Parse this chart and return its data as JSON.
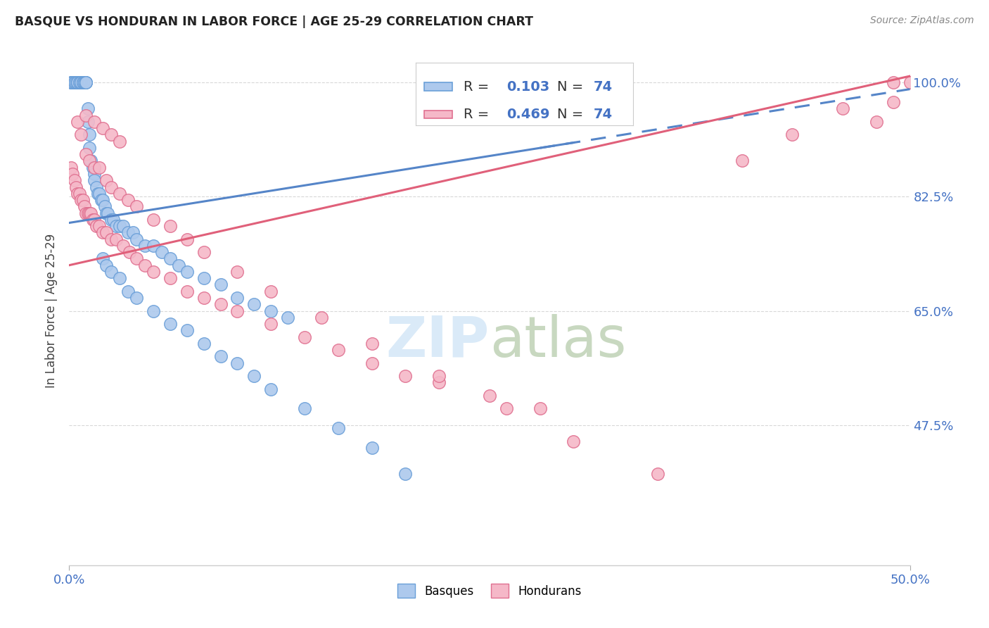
{
  "title": "BASQUE VS HONDURAN IN LABOR FORCE | AGE 25-29 CORRELATION CHART",
  "source": "Source: ZipAtlas.com",
  "ylabel": "In Labor Force | Age 25-29",
  "x_min": 0.0,
  "x_max": 0.5,
  "y_min": 0.26,
  "y_max": 1.04,
  "y_tick_vals": [
    0.475,
    0.65,
    0.825,
    1.0
  ],
  "y_tick_labels": [
    "47.5%",
    "65.0%",
    "82.5%",
    "100.0%"
  ],
  "x_tick_vals": [
    0.0,
    0.5
  ],
  "x_tick_labels": [
    "0.0%",
    "50.0%"
  ],
  "blue_color": "#adc9ed",
  "blue_edge": "#6a9fd8",
  "pink_color": "#f5b8c8",
  "pink_edge": "#e07090",
  "blue_line_color": "#5585c8",
  "pink_line_color": "#e0607a",
  "tick_label_color": "#4472c4",
  "grid_color": "#d8d8d8",
  "watermark_color": "#daeaf8",
  "blue_R": "0.103",
  "pink_R": "0.469",
  "N": "74",
  "blue_scatter_x": [
    0.001,
    0.001,
    0.002,
    0.002,
    0.003,
    0.003,
    0.004,
    0.005,
    0.005,
    0.006,
    0.006,
    0.007,
    0.007,
    0.008,
    0.008,
    0.009,
    0.009,
    0.01,
    0.01,
    0.01,
    0.011,
    0.011,
    0.012,
    0.012,
    0.013,
    0.014,
    0.015,
    0.015,
    0.016,
    0.017,
    0.018,
    0.019,
    0.02,
    0.021,
    0.022,
    0.023,
    0.025,
    0.026,
    0.028,
    0.03,
    0.032,
    0.035,
    0.038,
    0.04,
    0.045,
    0.05,
    0.055,
    0.06,
    0.065,
    0.07,
    0.08,
    0.09,
    0.1,
    0.11,
    0.12,
    0.13,
    0.02,
    0.022,
    0.025,
    0.03,
    0.035,
    0.04,
    0.05,
    0.06,
    0.07,
    0.08,
    0.09,
    0.1,
    0.11,
    0.12,
    0.14,
    0.16,
    0.18,
    0.2
  ],
  "blue_scatter_y": [
    1.0,
    1.0,
    1.0,
    1.0,
    1.0,
    1.0,
    1.0,
    1.0,
    1.0,
    1.0,
    1.0,
    1.0,
    1.0,
    1.0,
    1.0,
    1.0,
    1.0,
    1.0,
    1.0,
    1.0,
    0.96,
    0.94,
    0.92,
    0.9,
    0.88,
    0.87,
    0.86,
    0.85,
    0.84,
    0.83,
    0.83,
    0.82,
    0.82,
    0.81,
    0.8,
    0.8,
    0.79,
    0.79,
    0.78,
    0.78,
    0.78,
    0.77,
    0.77,
    0.76,
    0.75,
    0.75,
    0.74,
    0.73,
    0.72,
    0.71,
    0.7,
    0.69,
    0.67,
    0.66,
    0.65,
    0.64,
    0.73,
    0.72,
    0.71,
    0.7,
    0.68,
    0.67,
    0.65,
    0.63,
    0.62,
    0.6,
    0.58,
    0.57,
    0.55,
    0.53,
    0.5,
    0.47,
    0.44,
    0.4
  ],
  "pink_scatter_x": [
    0.001,
    0.002,
    0.003,
    0.004,
    0.005,
    0.006,
    0.007,
    0.008,
    0.009,
    0.01,
    0.011,
    0.012,
    0.013,
    0.014,
    0.015,
    0.016,
    0.018,
    0.02,
    0.022,
    0.025,
    0.028,
    0.032,
    0.036,
    0.04,
    0.045,
    0.05,
    0.06,
    0.07,
    0.08,
    0.09,
    0.1,
    0.12,
    0.14,
    0.16,
    0.18,
    0.2,
    0.22,
    0.25,
    0.28,
    0.005,
    0.007,
    0.01,
    0.012,
    0.015,
    0.018,
    0.022,
    0.025,
    0.03,
    0.035,
    0.04,
    0.05,
    0.06,
    0.07,
    0.08,
    0.1,
    0.12,
    0.15,
    0.18,
    0.22,
    0.26,
    0.3,
    0.35,
    0.4,
    0.43,
    0.46,
    0.49,
    0.5,
    0.49,
    0.48,
    0.01,
    0.015,
    0.02,
    0.025,
    0.03
  ],
  "pink_scatter_y": [
    0.87,
    0.86,
    0.85,
    0.84,
    0.83,
    0.83,
    0.82,
    0.82,
    0.81,
    0.8,
    0.8,
    0.8,
    0.8,
    0.79,
    0.79,
    0.78,
    0.78,
    0.77,
    0.77,
    0.76,
    0.76,
    0.75,
    0.74,
    0.73,
    0.72,
    0.71,
    0.7,
    0.68,
    0.67,
    0.66,
    0.65,
    0.63,
    0.61,
    0.59,
    0.57,
    0.55,
    0.54,
    0.52,
    0.5,
    0.94,
    0.92,
    0.89,
    0.88,
    0.87,
    0.87,
    0.85,
    0.84,
    0.83,
    0.82,
    0.81,
    0.79,
    0.78,
    0.76,
    0.74,
    0.71,
    0.68,
    0.64,
    0.6,
    0.55,
    0.5,
    0.45,
    0.4,
    0.88,
    0.92,
    0.96,
    1.0,
    1.0,
    0.97,
    0.94,
    0.95,
    0.94,
    0.93,
    0.92,
    0.91
  ]
}
